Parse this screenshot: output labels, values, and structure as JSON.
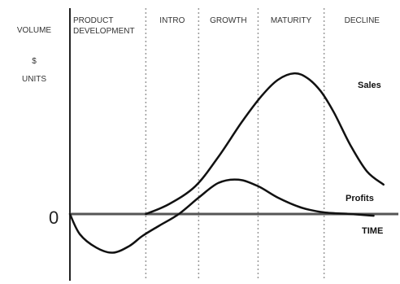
{
  "chart_data": {
    "type": "line",
    "ylabel_lines": [
      "VOLUME",
      "$",
      "UNITS"
    ],
    "zero_label": "0",
    "xlabel": "TIME",
    "stages": [
      {
        "lines": [
          "PRODUCT",
          "DEVELOPMENT"
        ]
      },
      {
        "lines": [
          "INTRO"
        ]
      },
      {
        "lines": [
          "GROWTH"
        ]
      },
      {
        "lines": [
          "MATURITY"
        ]
      },
      {
        "lines": [
          "DECLINE"
        ]
      }
    ],
    "stage_boundaries": [
      0,
      23,
      39,
      57,
      77,
      100
    ],
    "xlim": [
      0,
      100
    ],
    "ylim": [
      -30,
      95
    ],
    "series": [
      {
        "name": "Sales",
        "color": "#111111",
        "points": [
          [
            23,
            0
          ],
          [
            30,
            6
          ],
          [
            38,
            17
          ],
          [
            45,
            35
          ],
          [
            52,
            56
          ],
          [
            58,
            72
          ],
          [
            63,
            82
          ],
          [
            68,
            86
          ],
          [
            72,
            83
          ],
          [
            76,
            75
          ],
          [
            80,
            62
          ],
          [
            85,
            42
          ],
          [
            90,
            26
          ],
          [
            95,
            18
          ]
        ]
      },
      {
        "name": "Profits",
        "color": "#111111",
        "points": [
          [
            0,
            0
          ],
          [
            3,
            -12
          ],
          [
            8,
            -20
          ],
          [
            13,
            -23
          ],
          [
            18,
            -19
          ],
          [
            22,
            -13
          ],
          [
            27,
            -7
          ],
          [
            33,
            0
          ],
          [
            39,
            10
          ],
          [
            45,
            19
          ],
          [
            51,
            21
          ],
          [
            57,
            17
          ],
          [
            63,
            10
          ],
          [
            70,
            4
          ],
          [
            77,
            1
          ],
          [
            85,
            0
          ],
          [
            92,
            -1
          ]
        ]
      }
    ],
    "grid": false
  }
}
